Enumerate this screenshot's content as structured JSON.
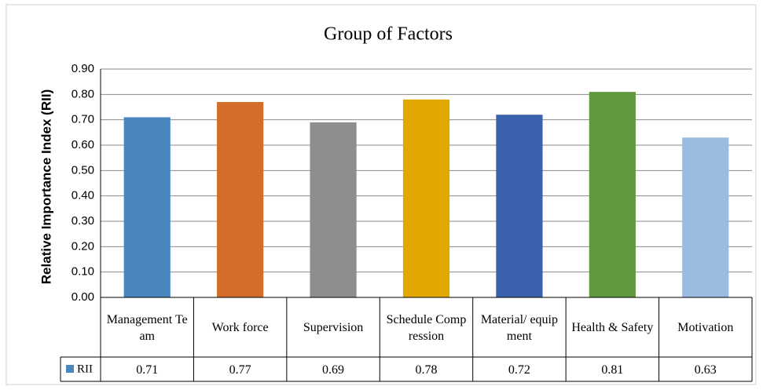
{
  "chart_data": {
    "type": "bar",
    "title": "Group of Factors",
    "y_label": "Relative Importance Index (RII)",
    "categories": [
      "Management Team",
      "Work force",
      "Supervision",
      "Schedule Compression",
      "Material/ equipment",
      "Health & Safety",
      "Motivation"
    ],
    "series": [
      {
        "name": "RII",
        "color": "#4a86c0",
        "values": [
          0.71,
          0.77,
          0.69,
          0.78,
          0.72,
          0.81,
          0.63
        ],
        "colors": [
          "#4a86c0",
          "#d46d2a",
          "#8e8e8e",
          "#e2a800",
          "#3a62ad",
          "#5f9a3f",
          "#9bbbe0"
        ]
      }
    ],
    "ylim": [
      0,
      0.9
    ],
    "yticks": [
      {
        "value": 0,
        "label": "0.00"
      },
      {
        "value": 0.1,
        "label": "0.10"
      },
      {
        "value": 0.2,
        "label": "0.20"
      },
      {
        "value": 0.3,
        "label": "0.30"
      },
      {
        "value": 0.4,
        "label": "0.40"
      },
      {
        "value": 0.5,
        "label": "0.50"
      },
      {
        "value": 0.6,
        "label": "0.60"
      },
      {
        "value": 0.7,
        "label": "0.70"
      },
      {
        "value": 0.8,
        "label": "0.80"
      },
      {
        "value": 0.9,
        "label": "0.90"
      }
    ],
    "grid": true,
    "data_table": true
  }
}
